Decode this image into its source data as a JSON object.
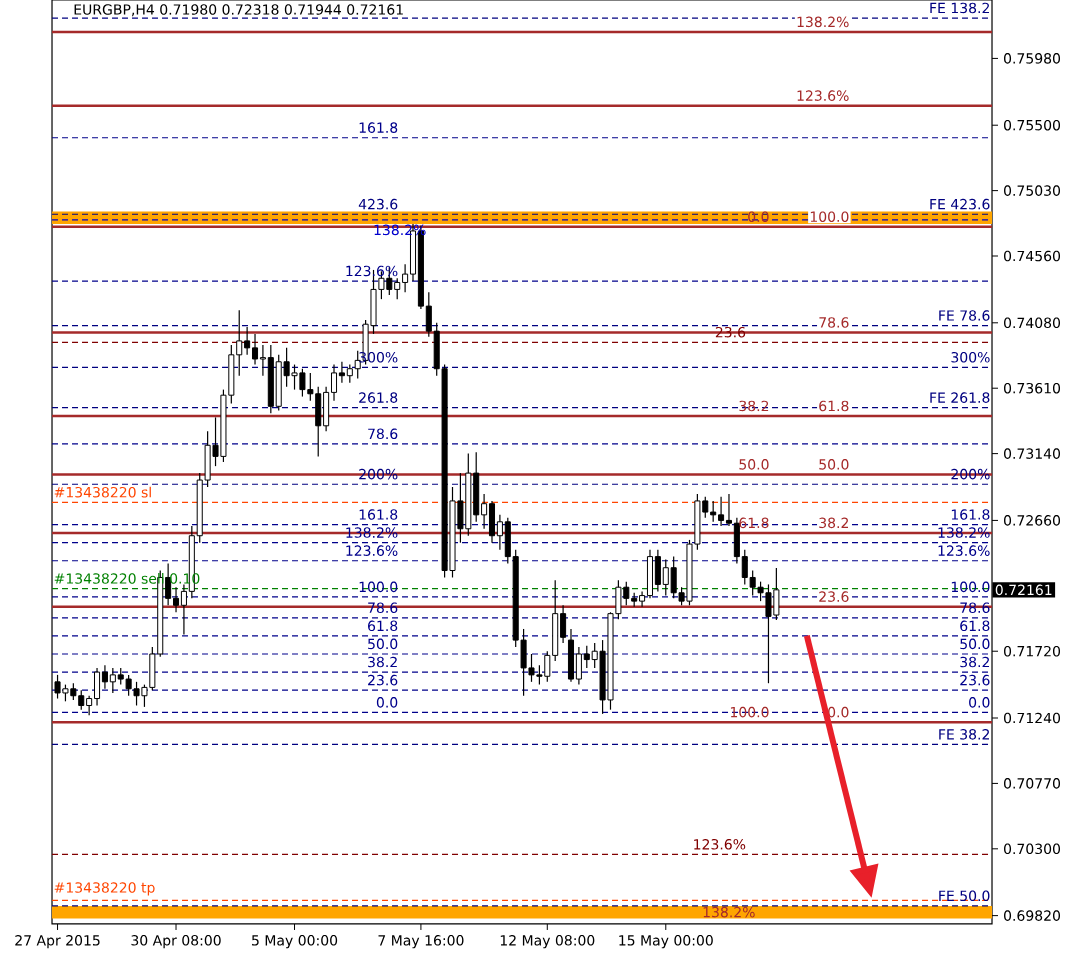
{
  "chart_data": {
    "type": "candlestick",
    "title": "EURGBP,H4  0.71980 0.72318 0.71944 0.72161",
    "categories": [
      "27 Apr 2015",
      null,
      null,
      null,
      null,
      null,
      null,
      null,
      null,
      null,
      null,
      null,
      null,
      null,
      null,
      "30 Apr 08:00",
      null,
      null,
      null,
      null,
      null,
      null,
      null,
      null,
      null,
      null,
      null,
      null,
      null,
      null,
      "5 May 00:00",
      null,
      null,
      null,
      null,
      null,
      null,
      null,
      null,
      null,
      null,
      null,
      null,
      null,
      null,
      null,
      "7 May 16:00",
      null,
      null,
      null,
      null,
      null,
      null,
      null,
      null,
      null,
      null,
      null,
      null,
      null,
      null,
      null,
      "12 May 08:00",
      null,
      null,
      null,
      null,
      null,
      null,
      null,
      null,
      null,
      null,
      null,
      null,
      null,
      null,
      "15 May 00:00",
      null,
      null,
      null,
      null,
      null,
      null,
      null,
      null,
      null,
      null,
      null,
      null,
      null,
      null,
      null,
      null,
      null,
      null,
      null,
      null,
      null,
      null,
      null,
      null,
      null,
      null,
      null,
      null,
      null,
      null,
      null,
      null,
      null,
      null,
      null,
      null,
      null,
      null,
      null,
      null,
      null
    ],
    "ohlc": [
      [
        0.715,
        0.7155,
        0.7138,
        0.7142
      ],
      [
        0.7142,
        0.7148,
        0.7136,
        0.7145
      ],
      [
        0.7145,
        0.7149,
        0.7137,
        0.714
      ],
      [
        0.714,
        0.7144,
        0.713,
        0.7133
      ],
      [
        0.7133,
        0.714,
        0.7126,
        0.7138
      ],
      [
        0.7138,
        0.716,
        0.7133,
        0.7157
      ],
      [
        0.7157,
        0.7162,
        0.7145,
        0.715
      ],
      [
        0.715,
        0.716,
        0.7142,
        0.7155
      ],
      [
        0.7155,
        0.716,
        0.7148,
        0.7152
      ],
      [
        0.7152,
        0.7155,
        0.714,
        0.7145
      ],
      [
        0.7145,
        0.715,
        0.7133,
        0.714
      ],
      [
        0.714,
        0.7148,
        0.7132,
        0.7146
      ],
      [
        0.7146,
        0.7175,
        0.7144,
        0.717
      ],
      [
        0.717,
        0.723,
        0.7168,
        0.7225
      ],
      [
        0.7225,
        0.7235,
        0.7205,
        0.721
      ],
      [
        0.721,
        0.7218,
        0.72,
        0.7205
      ],
      [
        0.7205,
        0.722,
        0.7184,
        0.7215
      ],
      [
        0.7215,
        0.7262,
        0.721,
        0.7255
      ],
      [
        0.7255,
        0.73,
        0.725,
        0.7295
      ],
      [
        0.7295,
        0.733,
        0.729,
        0.732
      ],
      [
        0.732,
        0.734,
        0.7305,
        0.7312
      ],
      [
        0.7312,
        0.736,
        0.7308,
        0.7356
      ],
      [
        0.7356,
        0.7392,
        0.735,
        0.7385
      ],
      [
        0.7385,
        0.7417,
        0.737,
        0.7395
      ],
      [
        0.7395,
        0.7405,
        0.7385,
        0.739
      ],
      [
        0.739,
        0.74,
        0.7378,
        0.7382
      ],
      [
        0.7382,
        0.7392,
        0.737,
        0.7383
      ],
      [
        0.7383,
        0.7392,
        0.7343,
        0.7348
      ],
      [
        0.7348,
        0.7385,
        0.7345,
        0.738
      ],
      [
        0.738,
        0.739,
        0.7362,
        0.737
      ],
      [
        0.737,
        0.7378,
        0.736,
        0.7372
      ],
      [
        0.7372,
        0.7375,
        0.7355,
        0.736
      ],
      [
        0.736,
        0.7372,
        0.7352,
        0.7357
      ],
      [
        0.7357,
        0.7362,
        0.7312,
        0.7334
      ],
      [
        0.7334,
        0.7362,
        0.733,
        0.7358
      ],
      [
        0.7358,
        0.7378,
        0.7352,
        0.7372
      ],
      [
        0.7372,
        0.738,
        0.7365,
        0.737
      ],
      [
        0.737,
        0.7378,
        0.7365,
        0.7375
      ],
      [
        0.7375,
        0.7388,
        0.7368,
        0.7381
      ],
      [
        0.7381,
        0.741,
        0.7378,
        0.7407
      ],
      [
        0.7406,
        0.7446,
        0.74,
        0.7432
      ],
      [
        0.7432,
        0.7445,
        0.7425,
        0.744
      ],
      [
        0.744,
        0.7448,
        0.7428,
        0.7432
      ],
      [
        0.7432,
        0.744,
        0.7425,
        0.7437
      ],
      [
        0.7437,
        0.745,
        0.743,
        0.7443
      ],
      [
        0.7443,
        0.7479,
        0.7438,
        0.7474
      ],
      [
        0.7474,
        0.7478,
        0.7418,
        0.742
      ],
      [
        0.742,
        0.743,
        0.7398,
        0.7402
      ],
      [
        0.7402,
        0.7408,
        0.737,
        0.7375
      ],
      [
        0.7375,
        0.7378,
        0.7225,
        0.723
      ],
      [
        0.723,
        0.729,
        0.7225,
        0.728
      ],
      [
        0.728,
        0.73,
        0.725,
        0.726
      ],
      [
        0.726,
        0.7314,
        0.7255,
        0.73
      ],
      [
        0.73,
        0.7315,
        0.7265,
        0.727
      ],
      [
        0.727,
        0.7285,
        0.726,
        0.7278
      ],
      [
        0.7278,
        0.728,
        0.725,
        0.7255
      ],
      [
        0.7255,
        0.727,
        0.7245,
        0.7265
      ],
      [
        0.7265,
        0.7268,
        0.7235,
        0.724
      ],
      [
        0.724,
        0.7245,
        0.7175,
        0.718
      ],
      [
        0.718,
        0.7188,
        0.714,
        0.716
      ],
      [
        0.716,
        0.717,
        0.715,
        0.7155
      ],
      [
        0.7155,
        0.7162,
        0.7148,
        0.7154
      ],
      [
        0.7154,
        0.7172,
        0.715,
        0.7169
      ],
      [
        0.7169,
        0.7223,
        0.7165,
        0.7199
      ],
      [
        0.7199,
        0.7205,
        0.7178,
        0.7182
      ],
      [
        0.718,
        0.7188,
        0.715,
        0.7152
      ],
      [
        0.7152,
        0.7175,
        0.7148,
        0.717
      ],
      [
        0.717,
        0.7176,
        0.716,
        0.7166
      ],
      [
        0.7166,
        0.7178,
        0.716,
        0.7172
      ],
      [
        0.7172,
        0.718,
        0.7127,
        0.7137
      ],
      [
        0.7137,
        0.72,
        0.713,
        0.7199
      ],
      [
        0.7199,
        0.7223,
        0.7195,
        0.7218
      ],
      [
        0.7218,
        0.7222,
        0.7205,
        0.721
      ],
      [
        0.721,
        0.7214,
        0.7204,
        0.7208
      ],
      [
        0.7208,
        0.7215,
        0.7204,
        0.7212
      ],
      [
        0.7212,
        0.7245,
        0.721,
        0.724
      ],
      [
        0.724,
        0.7245,
        0.7215,
        0.722
      ],
      [
        0.722,
        0.7238,
        0.7212,
        0.7232
      ],
      [
        0.7232,
        0.724,
        0.721,
        0.7214
      ],
      [
        0.7214,
        0.7218,
        0.7205,
        0.7208
      ],
      [
        0.7208,
        0.7252,
        0.7205,
        0.7249
      ],
      [
        0.7249,
        0.7285,
        0.7245,
        0.728
      ],
      [
        0.728,
        0.7283,
        0.7268,
        0.7272
      ],
      [
        0.7272,
        0.728,
        0.7265,
        0.727
      ],
      [
        0.727,
        0.7283,
        0.7262,
        0.7266
      ],
      [
        0.7266,
        0.7285,
        0.7262,
        0.7264
      ],
      [
        0.7264,
        0.7268,
        0.7235,
        0.724
      ],
      [
        0.724,
        0.7245,
        0.722,
        0.7225
      ],
      [
        0.7225,
        0.723,
        0.7212,
        0.7218
      ],
      [
        0.7218,
        0.7222,
        0.7208,
        0.7214
      ],
      [
        0.7214,
        0.722,
        0.7149,
        0.7197
      ],
      [
        0.7198,
        0.72318,
        0.71944,
        0.72161
      ],
      null,
      null,
      null,
      null,
      null,
      null,
      null,
      null,
      null,
      null,
      null,
      null,
      null,
      null,
      null,
      null,
      null,
      null,
      null,
      null,
      null,
      null,
      null,
      null,
      null,
      null,
      null
    ],
    "ylim": [
      0.6976,
      0.764
    ],
    "yticks": [
      {
        "value": 0.6982,
        "label": "0.69820"
      },
      {
        "value": 0.703,
        "label": "0.70300"
      },
      {
        "value": 0.7077,
        "label": "0.70770"
      },
      {
        "value": 0.7124,
        "label": "0.71240"
      },
      {
        "value": 0.7172,
        "label": "0.71720"
      },
      {
        "value": 0.7266,
        "label": "0.72660"
      },
      {
        "value": 0.7314,
        "label": "0.73140"
      },
      {
        "value": 0.7361,
        "label": "0.73610"
      },
      {
        "value": 0.7408,
        "label": "0.74080"
      },
      {
        "value": 0.7456,
        "label": "0.74560"
      },
      {
        "value": 0.7503,
        "label": "0.75030"
      },
      {
        "value": 0.755,
        "label": "0.75500"
      },
      {
        "value": 0.7598,
        "label": "0.75980"
      }
    ],
    "bands": [
      {
        "axis": "y",
        "from": 0.7479,
        "to": 0.7488,
        "color": "#ffa500"
      },
      {
        "axis": "y",
        "from": 0.698,
        "to": 0.6989,
        "color": "#ffa500",
        "label": "138.2%"
      }
    ],
    "ref_lines": [
      {
        "axis": "y",
        "value": 0.7627,
        "color": "#000080",
        "line_style": "dashed"
      },
      {
        "axis": "y",
        "value": 0.7617,
        "color": "#a52a2a",
        "line_style": "solid"
      },
      {
        "axis": "y",
        "value": 0.7564,
        "color": "#a52a2a",
        "line_style": "solid"
      },
      {
        "axis": "y",
        "value": 0.7541,
        "color": "#00008b",
        "line_style": "dashed"
      },
      {
        "axis": "y",
        "value": 0.7486,
        "color": "#000080",
        "line_style": "dashed"
      },
      {
        "axis": "y",
        "value": 0.7482,
        "color": "#0000cd",
        "line_style": "dashed"
      },
      {
        "axis": "y",
        "value": 0.7477,
        "color": "#a52a2a",
        "line_style": "solid"
      },
      {
        "axis": "y",
        "value": 0.7438,
        "color": "#00008b",
        "line_style": "dashed"
      },
      {
        "axis": "y",
        "value": 0.7406,
        "color": "#000080",
        "line_style": "dashed"
      },
      {
        "axis": "y",
        "value": 0.7401,
        "color": "#a52a2a",
        "line_style": "solid"
      },
      {
        "axis": "y",
        "value": 0.7394,
        "color": "#800000",
        "line_style": "dashed"
      },
      {
        "axis": "y",
        "value": 0.7376,
        "color": "#000080",
        "line_style": "dashed"
      },
      {
        "axis": "y",
        "value": 0.7347,
        "color": "#000080",
        "line_style": "dashed"
      },
      {
        "axis": "y",
        "value": 0.7341,
        "color": "#a52a2a",
        "line_style": "solid"
      },
      {
        "axis": "y",
        "value": 0.7321,
        "color": "#00008b",
        "line_style": "dashed"
      },
      {
        "axis": "y",
        "value": 0.7299,
        "color": "#a52a2a",
        "line_style": "solid"
      },
      {
        "axis": "y",
        "value": 0.7292,
        "color": "#000080",
        "line_style": "dashed"
      },
      {
        "axis": "y",
        "value": 0.7279,
        "label": "#13438220 sl",
        "color": "#ff4500",
        "line_style": "dashed"
      },
      {
        "axis": "y",
        "value": 0.7263,
        "color": "#00008b",
        "line_style": "dashed"
      },
      {
        "axis": "y",
        "value": 0.7257,
        "color": "#a52a2a",
        "line_style": "solid"
      },
      {
        "axis": "y",
        "value": 0.725,
        "color": "#00008b",
        "line_style": "dashed"
      },
      {
        "axis": "y",
        "value": 0.7237,
        "color": "#00008b",
        "line_style": "dashed"
      },
      {
        "axis": "y",
        "value": 0.7217,
        "label": "#13438220 sell 0.10",
        "color": "#008000",
        "line_style": "dashed"
      },
      {
        "axis": "y",
        "value": 0.7211,
        "color": "#00008b",
        "line_style": "dashed"
      },
      {
        "axis": "y",
        "value": 0.7204,
        "color": "#a52a2a",
        "line_style": "solid"
      },
      {
        "axis": "y",
        "value": 0.7196,
        "color": "#00008b",
        "line_style": "dashed"
      },
      {
        "axis": "y",
        "value": 0.7183,
        "color": "#00008b",
        "line_style": "dashed"
      },
      {
        "axis": "y",
        "value": 0.717,
        "color": "#00008b",
        "line_style": "dashed"
      },
      {
        "axis": "y",
        "value": 0.7157,
        "color": "#00008b",
        "line_style": "dashed"
      },
      {
        "axis": "y",
        "value": 0.7144,
        "color": "#00008b",
        "line_style": "dashed"
      },
      {
        "axis": "y",
        "value": 0.7128,
        "color": "#00008b",
        "line_style": "dashed"
      },
      {
        "axis": "y",
        "value": 0.7121,
        "color": "#a52a2a",
        "line_style": "solid"
      },
      {
        "axis": "y",
        "value": 0.7105,
        "color": "#000080",
        "line_style": "dashed"
      },
      {
        "axis": "y",
        "value": 0.7026,
        "color": "#800000",
        "line_style": "dashed"
      },
      {
        "axis": "y",
        "value": 0.6993,
        "label": "#13438220 tp",
        "color": "#ff4500",
        "line_style": "dashed"
      },
      {
        "axis": "y",
        "value": 0.6989,
        "color": "#000080",
        "line_style": "dashed"
      }
    ],
    "annotations": [
      {
        "text": "FE 138.2",
        "y": 0.7627
      },
      {
        "text": "138.2%",
        "y": 0.7617
      },
      {
        "text": "123.6%",
        "y": 0.7564
      },
      {
        "text": "161.8",
        "y": 0.7541
      },
      {
        "text": "FE 423.6",
        "y": 0.7486
      },
      {
        "text": "423.6",
        "y": 0.7486
      },
      {
        "text": "138.2%",
        "y": 0.7482
      },
      {
        "text": "100.0",
        "y": 0.7477
      },
      {
        "text": "0.0",
        "y": 0.7477
      },
      {
        "text": "123.6%",
        "y": 0.7438
      },
      {
        "text": "FE 78.6",
        "y": 0.7406
      },
      {
        "text": "78.6",
        "y": 0.7401
      },
      {
        "text": "23.6",
        "y": 0.7394
      },
      {
        "text": "300%",
        "y": 0.7376
      },
      {
        "text": "300%",
        "y": 0.7376
      },
      {
        "text": "FE 261.8",
        "y": 0.7347
      },
      {
        "text": "261.8",
        "y": 0.7347
      },
      {
        "text": "61.8",
        "y": 0.7341
      },
      {
        "text": "38.2",
        "y": 0.7341
      },
      {
        "text": "78.6",
        "y": 0.7321
      },
      {
        "text": "50.0",
        "y": 0.7299
      },
      {
        "text": "50.0",
        "y": 0.7299
      },
      {
        "text": "200%",
        "y": 0.7292
      },
      {
        "text": "200%",
        "y": 0.7292
      },
      {
        "text": "161.8",
        "y": 0.7263
      },
      {
        "text": "161.8",
        "y": 0.7263
      },
      {
        "text": "38.2",
        "y": 0.7257
      },
      {
        "text": "61.8",
        "y": 0.7257
      },
      {
        "text": "138.2%",
        "y": 0.725
      },
      {
        "text": "138.2%",
        "y": 0.725
      },
      {
        "text": "123.6%",
        "y": 0.7237
      },
      {
        "text": "123.6%",
        "y": 0.7237
      },
      {
        "text": "100.0",
        "y": 0.7211
      },
      {
        "text": "100.0",
        "y": 0.7211
      },
      {
        "text": "23.6",
        "y": 0.7204
      },
      {
        "text": "78.6",
        "y": 0.7196
      },
      {
        "text": "78.6",
        "y": 0.7196
      },
      {
        "text": "61.8",
        "y": 0.7183
      },
      {
        "text": "61.8",
        "y": 0.7183
      },
      {
        "text": "50.0",
        "y": 0.717
      },
      {
        "text": "50.0",
        "y": 0.717
      },
      {
        "text": "38.2",
        "y": 0.7157
      },
      {
        "text": "38.2",
        "y": 0.7157
      },
      {
        "text": "23.6",
        "y": 0.7144
      },
      {
        "text": "23.6",
        "y": 0.7144
      },
      {
        "text": "0.0",
        "y": 0.7128
      },
      {
        "text": "0.0",
        "y": 0.7128
      },
      {
        "text": "0.0",
        "y": 0.7121
      },
      {
        "text": "100.0",
        "y": 0.7121
      },
      {
        "text": "FE 38.2",
        "y": 0.7105
      },
      {
        "text": "123.6%",
        "y": 0.7026
      },
      {
        "text": "FE 50.0",
        "y": 0.6989
      },
      "0.72161"
    ]
  }
}
